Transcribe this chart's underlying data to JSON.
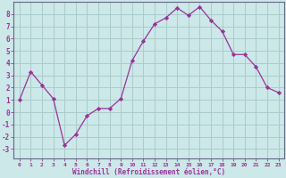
{
  "x": [
    0,
    1,
    2,
    3,
    4,
    5,
    6,
    7,
    8,
    9,
    10,
    11,
    12,
    13,
    14,
    15,
    16,
    17,
    18,
    19,
    20,
    21,
    22,
    23
  ],
  "y": [
    1.0,
    3.3,
    2.2,
    1.1,
    -2.7,
    -1.8,
    -0.3,
    0.3,
    0.3,
    1.1,
    4.2,
    5.8,
    7.2,
    7.7,
    8.5,
    7.9,
    8.6,
    7.5,
    6.6,
    4.7,
    4.7,
    3.7,
    2.0,
    1.6
  ],
  "line_color": "#993399",
  "marker": "D",
  "marker_size": 2.2,
  "bg_color": "#cce8e8",
  "grid_color": "#aacccc",
  "xlabel": "Windchill (Refroidissement éolien,°C)",
  "xlabel_color": "#993399",
  "ylabel_ticks": [
    -3,
    -2,
    -1,
    0,
    1,
    2,
    3,
    4,
    5,
    6,
    7,
    8
  ],
  "xtick_labels": [
    "0",
    "1",
    "2",
    "3",
    "4",
    "5",
    "6",
    "7",
    "8",
    "9",
    "10",
    "11",
    "12",
    "13",
    "14",
    "15",
    "16",
    "17",
    "18",
    "19",
    "20",
    "21",
    "22",
    "23"
  ],
  "ylim": [
    -3.8,
    9.0
  ],
  "xlim": [
    -0.5,
    23.5
  ],
  "axis_color": "#993399",
  "tick_color": "#993399",
  "spine_color": "#666688"
}
